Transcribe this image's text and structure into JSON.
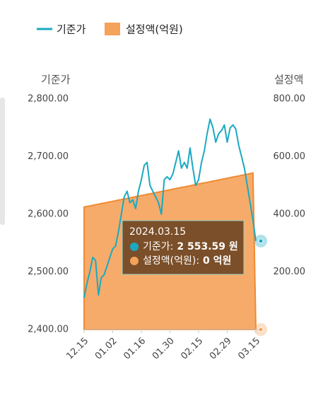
{
  "chart_data": {
    "type": "line-area",
    "legend_position": "top-left",
    "y_axis_title": "기준가",
    "y2_axis_title": "설정액",
    "categories": [
      "12.15",
      null,
      null,
      null,
      null,
      null,
      null,
      null,
      null,
      null,
      "01.02",
      null,
      null,
      null,
      null,
      null,
      null,
      null,
      null,
      null,
      "01.16",
      null,
      null,
      null,
      null,
      null,
      null,
      null,
      null,
      null,
      "01.30",
      null,
      null,
      null,
      null,
      null,
      null,
      null,
      null,
      null,
      "02.15",
      null,
      null,
      null,
      null,
      null,
      null,
      null,
      null,
      null,
      "02.29",
      null,
      null,
      null,
      null,
      null,
      null,
      null,
      null,
      null,
      "03.15"
    ],
    "series": [
      {
        "name": "기준가",
        "type": "line",
        "color": "#1ba9c2",
        "axis": "y",
        "values": [
          2455,
          2480,
          2500,
          2525,
          2520,
          2460,
          2490,
          2495,
          2510,
          2525,
          2540,
          2545,
          2570,
          2600,
          2630,
          2640,
          2620,
          2625,
          2610,
          2640,
          2660,
          2685,
          2690,
          2650,
          2640,
          2630,
          2620,
          2600,
          2660,
          2665,
          2660,
          2670,
          2690,
          2710,
          2680,
          2690,
          2680,
          2715,
          2680,
          2650,
          2660,
          2690,
          2710,
          2740,
          2765,
          2750,
          2725,
          2740,
          2745,
          2755,
          2725,
          2750,
          2755,
          2748,
          2720,
          2700,
          2680,
          2650,
          2620,
          2590,
          2553.59
        ]
      },
      {
        "name": "설정액(억원)",
        "type": "area",
        "color": "#f5a25a",
        "axis": "y2",
        "values": [
          425,
          427,
          429,
          431,
          433,
          435,
          437,
          439,
          441,
          443,
          445,
          447,
          449,
          451,
          453,
          455,
          457,
          459,
          461,
          463,
          465,
          467,
          469,
          471,
          473,
          475,
          477,
          479,
          481,
          483,
          485,
          487,
          489,
          491,
          493,
          495,
          497,
          499,
          501,
          503,
          505,
          507,
          509,
          511,
          513,
          515,
          517,
          519,
          521,
          523,
          525,
          527,
          529,
          531,
          533,
          535,
          537,
          539,
          541,
          543,
          0
        ]
      }
    ],
    "ylim": [
      2400,
      2800
    ],
    "yticks": [
      {
        "value": 2400,
        "label": "2,400.00"
      },
      {
        "value": 2500,
        "label": "2,500.00"
      },
      {
        "value": 2600,
        "label": "2,600.00"
      },
      {
        "value": 2700,
        "label": "2,700.00"
      },
      {
        "value": 2800,
        "label": "2,800.00"
      }
    ],
    "y2lim": [
      0,
      800
    ],
    "y2ticks": [
      {
        "value": 200,
        "label": "200.00"
      },
      {
        "value": 400,
        "label": "400.00"
      },
      {
        "value": 600,
        "label": "600.00"
      },
      {
        "value": 800,
        "label": "800.00"
      }
    ],
    "tooltip": {
      "title": "2024.03.15",
      "rows": [
        {
          "label": "기준가:",
          "value": "2 553.59 원"
        },
        {
          "label": "설정액(억원):",
          "value": "0 억원"
        }
      ]
    }
  }
}
